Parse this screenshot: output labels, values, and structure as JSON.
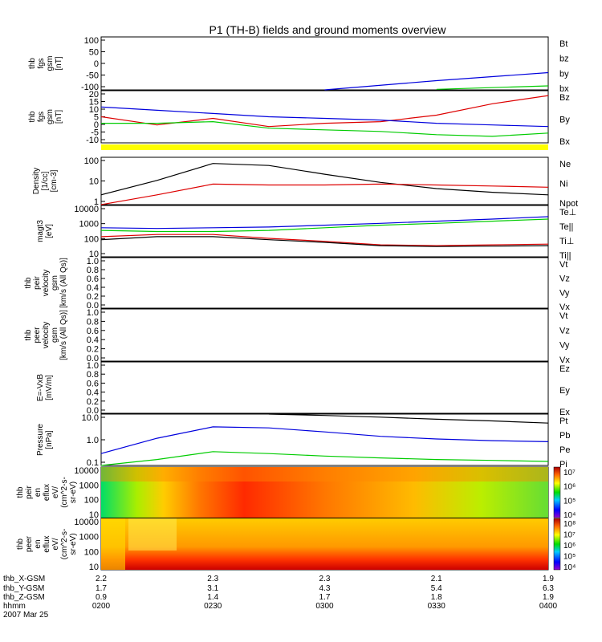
{
  "title": "P1 (TH-B) fields and ground moments overview",
  "colors": {
    "black": "#000000",
    "red": "#dd0000",
    "green": "#00cc00",
    "blue": "#0000dd",
    "yellow": "#ffff00"
  },
  "panels": [
    {
      "id": "fgs_gsm",
      "ylabel": [
        "thb",
        "fgs",
        "gsm",
        "[nT]"
      ],
      "yticks": [
        "100",
        "50",
        "0",
        "-50",
        "-100"
      ],
      "ylim": [
        -100,
        100
      ],
      "legend": [
        {
          "text": "Bt",
          "color": "black"
        },
        {
          "text": "bz",
          "color": "red"
        },
        {
          "text": "by",
          "color": "green"
        },
        {
          "text": "bx",
          "color": "blue"
        }
      ]
    },
    {
      "id": "fgs_gsm_zoom",
      "ylabel": [
        "thb",
        "fgs",
        "gsm",
        "[nT]"
      ],
      "yticks": [
        "20",
        "15",
        "10",
        "5",
        "0",
        "-5",
        "-10"
      ],
      "ylim": [
        -10,
        22
      ],
      "legend": [
        {
          "text": "Bz",
          "color": "red"
        },
        {
          "text": "By",
          "color": "green"
        },
        {
          "text": "Bx",
          "color": "blue"
        }
      ]
    },
    {
      "id": "density",
      "ylabel": [
        "Density",
        "[1/cc]",
        "[cm-3]"
      ],
      "yticks": [
        "100",
        "10",
        "1"
      ],
      "ylim": [
        1,
        200
      ],
      "log": true,
      "legend": [
        {
          "text": "Ne",
          "color": "red"
        },
        {
          "text": "Ni",
          "color": "black"
        },
        {
          "text": "Npot",
          "color": "blue"
        }
      ]
    },
    {
      "id": "temperature",
      "ylabel": [
        "magt3",
        "[eV]"
      ],
      "yticks": [
        "10000",
        "1000",
        "100",
        "10"
      ],
      "ylim": [
        10,
        10000
      ],
      "log": true,
      "legend": [
        {
          "text": "Te⊥",
          "color": "red"
        },
        {
          "text": "Te||",
          "color": "black"
        },
        {
          "text": "Ti⊥",
          "color": "blue"
        },
        {
          "text": "Ti||",
          "color": "green"
        }
      ]
    },
    {
      "id": "peir_velocity",
      "ylabel": [
        "thb",
        "peir",
        "velocity",
        "gsm",
        "[km/s (All Qs)]"
      ],
      "yticks": [
        "1.0",
        "0.8",
        "0.6",
        "0.4",
        "0.2",
        "0.0"
      ],
      "ylim": [
        0,
        1
      ],
      "legend": [
        {
          "text": "Vt",
          "color": "black"
        },
        {
          "text": "Vz",
          "color": "red"
        },
        {
          "text": "Vy",
          "color": "green"
        },
        {
          "text": "Vx",
          "color": "blue"
        }
      ]
    },
    {
      "id": "peer_velocity",
      "ylabel": [
        "thb",
        "peer",
        "velocity",
        "gsm",
        "[km/s (All Qs)]"
      ],
      "yticks": [
        "1.0",
        "0.8",
        "0.6",
        "0.4",
        "0.2",
        "0.0"
      ],
      "ylim": [
        0,
        1
      ],
      "legend": [
        {
          "text": "Vt",
          "color": "black"
        },
        {
          "text": "Vz",
          "color": "red"
        },
        {
          "text": "Vy",
          "color": "green"
        },
        {
          "text": "Vx",
          "color": "blue"
        }
      ]
    },
    {
      "id": "efield",
      "ylabel": [
        "E=-VxB",
        "[mV/m]"
      ],
      "yticks": [
        "1.0",
        "0.8",
        "0.6",
        "0.4",
        "0.2",
        "0.0"
      ],
      "ylim": [
        0,
        1
      ],
      "legend": [
        {
          "text": "Ez",
          "color": "red"
        },
        {
          "text": "Ey",
          "color": "green"
        },
        {
          "text": "Ex",
          "color": "blue"
        }
      ]
    },
    {
      "id": "pressure",
      "ylabel": [
        "Pressure",
        "[nPa]"
      ],
      "yticks": [
        "10.0",
        "1.0",
        "0.1"
      ],
      "ylim": [
        0.05,
        20
      ],
      "log": true,
      "legend": [
        {
          "text": "Pt",
          "color": "black"
        },
        {
          "text": "Pb",
          "color": "red"
        },
        {
          "text": "Pe",
          "color": "green"
        },
        {
          "text": "Pi",
          "color": "blue"
        }
      ]
    },
    {
      "id": "peir_eflux",
      "ylabel": [
        "thb",
        "peir",
        "en",
        "eflux",
        "eV/",
        "(cm^2-s-",
        "sr-eV)"
      ],
      "yticks": [
        "10000",
        "1000",
        "100",
        "10"
      ],
      "colorbar": [
        "10⁷",
        "10⁶",
        "10⁵",
        "10⁴"
      ]
    },
    {
      "id": "peer_eflux",
      "ylabel": [
        "thb",
        "peer",
        "en",
        "eflux",
        "eV/",
        "(cm^2-s-",
        "sr-eV)"
      ],
      "yticks": [
        "10000",
        "1000",
        "100",
        "10"
      ],
      "colorbar": [
        "10⁸",
        "10⁷",
        "10⁶",
        "10⁵",
        "10⁴"
      ]
    }
  ],
  "xaxis": {
    "row_labels": [
      "thb_X-GSM",
      "thb_Y-GSM",
      "thb_Z-GSM",
      "hhmm",
      "2007 Mar 25"
    ],
    "columns": [
      {
        "x": "2.2",
        "y": "1.7",
        "z": "0.9",
        "t": "0200"
      },
      {
        "x": "2.3",
        "y": "3.1",
        "z": "1.4",
        "t": "0230"
      },
      {
        "x": "2.3",
        "y": "4.3",
        "z": "1.7",
        "t": "0300"
      },
      {
        "x": "2.1",
        "y": "5.4",
        "z": "1.8",
        "t": "0330"
      },
      {
        "x": "1.9",
        "y": "6.3",
        "z": "1.9",
        "t": "0400"
      }
    ]
  },
  "chart_data": [
    {
      "type": "line",
      "title": "thb fgs gsm [nT]",
      "x": [
        "0200",
        "0230",
        "0300",
        "0330",
        "0400"
      ],
      "ylim": [
        -100,
        100
      ],
      "series": [
        {
          "name": "bx",
          "values": [
            null,
            null,
            -100,
            -65,
            -35
          ]
        },
        {
          "name": "by",
          "values": [
            null,
            null,
            null,
            -98,
            -85
          ]
        },
        {
          "name": "bz",
          "values": [
            null,
            null,
            null,
            null,
            100
          ]
        }
      ]
    },
    {
      "type": "line",
      "title": "thb fgs gsm [nT] (zoom)",
      "x": [
        "0200",
        "0215",
        "0230",
        "0245",
        "0300",
        "0315",
        "0330",
        "0345",
        "0400"
      ],
      "ylim": [
        -10,
        22
      ],
      "series": [
        {
          "name": "Bz",
          "values": [
            6,
            1,
            5,
            0,
            2,
            3,
            7,
            14,
            19
          ]
        },
        {
          "name": "By",
          "values": [
            2,
            2,
            3,
            -1,
            -2,
            -3,
            -5,
            -6,
            -4
          ]
        },
        {
          "name": "Bx",
          "values": [
            12,
            10,
            8,
            6,
            5,
            4,
            2,
            1,
            0
          ]
        }
      ]
    },
    {
      "type": "line",
      "title": "Density [cm-3]",
      "x": [
        "0200",
        "0215",
        "0230",
        "0245",
        "0300",
        "0315",
        "0330",
        "0345",
        "0400"
      ],
      "ylim": [
        1,
        200
      ],
      "log": true,
      "series": [
        {
          "name": "Ni",
          "values": [
            3,
            15,
            100,
            80,
            30,
            12,
            6,
            4,
            3
          ]
        },
        {
          "name": "Ne",
          "values": [
            1,
            3,
            10,
            9,
            9,
            10,
            9,
            8,
            7
          ]
        }
      ]
    },
    {
      "type": "line",
      "title": "magt3 [eV]",
      "x": [
        "0200",
        "0215",
        "0230",
        "0245",
        "0300",
        "0315",
        "0330",
        "0345",
        "0400"
      ],
      "ylim": [
        10,
        10000
      ],
      "log": true,
      "series": [
        {
          "name": "Ti⊥",
          "values": [
            500,
            450,
            500,
            550,
            700,
            900,
            1200,
            1600,
            2200
          ]
        },
        {
          "name": "Ti||",
          "values": [
            350,
            300,
            300,
            350,
            500,
            700,
            900,
            1200,
            1600
          ]
        },
        {
          "name": "Te⊥",
          "values": [
            150,
            200,
            200,
            120,
            80,
            50,
            45,
            50,
            55
          ]
        },
        {
          "name": "Te||",
          "values": [
            100,
            150,
            150,
            100,
            70,
            45,
            40,
            42,
            45
          ]
        }
      ]
    },
    {
      "type": "line",
      "title": "Pressure [nPa]",
      "x": [
        "0200",
        "0215",
        "0230",
        "0245",
        "0300",
        "0315",
        "0330",
        "0345",
        "0400"
      ],
      "ylim": [
        0.05,
        20
      ],
      "log": true,
      "series": [
        {
          "name": "Pt",
          "values": [
            null,
            null,
            null,
            20,
            17,
            14,
            11,
            9,
            7
          ]
        },
        {
          "name": "Pi",
          "values": [
            0.2,
            1.2,
            4.5,
            4.0,
            2.5,
            1.5,
            1.1,
            0.9,
            0.8
          ]
        },
        {
          "name": "Pe",
          "values": [
            0.05,
            0.1,
            0.25,
            0.2,
            0.15,
            0.12,
            0.1,
            0.09,
            0.08
          ]
        }
      ]
    },
    {
      "type": "heatmap",
      "title": "thb peir en eflux",
      "ylabel": "eV",
      "ylim": [
        10,
        20000
      ],
      "colorbar": [
        "10^4",
        "10^5",
        "10^6",
        "10^7"
      ]
    },
    {
      "type": "heatmap",
      "title": "thb peer en eflux",
      "ylabel": "eV",
      "ylim": [
        10,
        20000
      ],
      "colorbar": [
        "10^4",
        "10^5",
        "10^6",
        "10^7",
        "10^8"
      ]
    }
  ]
}
